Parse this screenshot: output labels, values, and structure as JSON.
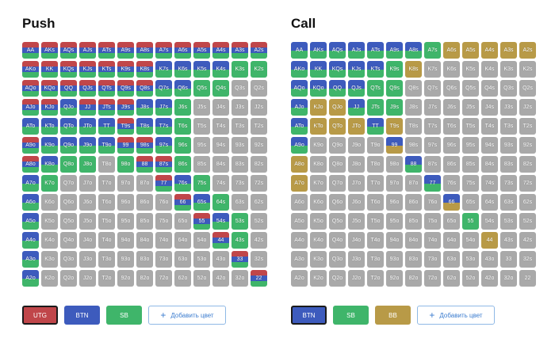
{
  "panels": [
    {
      "title": "Push",
      "legend": [
        {
          "label": "UTG",
          "color": "#c0464a",
          "active": true
        },
        {
          "label": "BTN",
          "color": "#3d5bbd",
          "active": false
        },
        {
          "label": "SB",
          "color": "#3fb56a",
          "active": false
        }
      ],
      "add_label": "Добавить цвет",
      "rows": [
        [
          "AA:rbg",
          "AKs:rbg",
          "AQs:rbg",
          "AJs:rbg",
          "ATs:rbg",
          "A9s:rbg",
          "A8s:rbg",
          "A7s:rbg",
          "A6s:rbg",
          "A5s:rbg",
          "A4s:rbg",
          "A3s:rbg",
          "A2s:rbg"
        ],
        [
          "AKo:rbg",
          "KK:rbg",
          "KQs:rbg",
          "KJs:rbg",
          "KTs:rbg",
          "K9s:rbg",
          "K8s:rbg",
          "K7s:bg",
          "K6s:bg",
          "K5s:bg",
          "K4s:bg",
          "K3s:g",
          "K2s:g"
        ],
        [
          "AQo:rbg",
          "KQo:rbg",
          "QQ:rbg",
          "QJs:rbg",
          "QTs:rbg",
          "Q9s:rbg",
          "Q8s:rbg",
          "Q7s:bg",
          "Q6s:bg",
          "Q5s:g",
          "Q4s:g",
          "Q3s:",
          "Q2s:"
        ],
        [
          "AJo:rbg",
          "KJo:rbg",
          "QJo:bg",
          "JJ:rbg",
          "JTs:rbg",
          "J9s:rbg",
          "J8s:bg",
          "J7s:bg",
          "J6s:g",
          "J5s:",
          "J4s:",
          "J3s:",
          "J2s:"
        ],
        [
          "ATo:bg",
          "KTo:bg",
          "QTo:bg",
          "JTo:bg",
          "TT:bg",
          "T9s:rbg",
          "T8s:bg",
          "T7s:bg",
          "T6s:g",
          "T5s:",
          "T4s:",
          "T3s:",
          "T2s:"
        ],
        [
          "A9o:rbg",
          "K9o:bg",
          "Q9o:bg",
          "J9o:bg",
          "T9o:bg",
          "99:rbg",
          "98s:rbg",
          "97s:bg",
          "96s:g",
          "95s:",
          "94s:",
          "93s:",
          "92s:"
        ],
        [
          "A8o:rbg",
          "K8o:bg",
          "Q8o:g",
          "J8o:g",
          "T8o:",
          "98o:g",
          "88:rbg",
          "87s:rbg",
          "86s:g",
          "85s:",
          "84s:",
          "83s:",
          "82s:"
        ],
        [
          "A7o:bg",
          "K7o:g",
          "Q7o:",
          "J7o:",
          "T7o:",
          "97o:",
          "87o:",
          "77:rbg",
          "76s:bg",
          "75s:g",
          "74s:",
          "73s:",
          "72s:"
        ],
        [
          "A6o:bg",
          "K6o:",
          "Q6o:",
          "J6o:",
          "T6o:",
          "96o:",
          "86o:",
          "76o:",
          "66:rbg",
          "65s:bg",
          "64s:g",
          "63s:",
          "62s:"
        ],
        [
          "A5o:bg",
          "K5o:",
          "Q5o:",
          "J5o:",
          "T5o:",
          "95o:",
          "85o:",
          "75o:",
          "65o:",
          "55:rbg",
          "54s:bg",
          "53s:g",
          "52s:"
        ],
        [
          "A4o:bg",
          "K4o:",
          "Q4o:",
          "J4o:",
          "T4o:",
          "94o:",
          "84o:",
          "74o:",
          "64o:",
          "54o:",
          "44:rbg",
          "43s:g",
          "42s:"
        ],
        [
          "A3o:bg",
          "K3o:",
          "Q3o:",
          "J3o:",
          "T3o:",
          "93o:",
          "83o:",
          "73o:",
          "63o:",
          "53o:",
          "43o:",
          "33:rbg",
          "32s:"
        ],
        [
          "A2o:bg",
          "K2o:",
          "Q2o:",
          "J2o:",
          "T2o:",
          "92o:",
          "82o:",
          "72o:",
          "62o:",
          "52o:",
          "42o:",
          "32o:",
          "22:rbg"
        ]
      ]
    },
    {
      "title": "Call",
      "legend": [
        {
          "label": "BTN",
          "color": "#3d5bbd",
          "active": true
        },
        {
          "label": "SB",
          "color": "#3fb56a",
          "active": false
        },
        {
          "label": "BB",
          "color": "#b89a47",
          "active": false
        }
      ],
      "add_label": "Добавить цвет",
      "rows": [
        [
          "AA:bg",
          "AKs:bg",
          "AQs:bg",
          "AJs:bg",
          "ATs:bg",
          "A9s:bg",
          "A8s:bg",
          "A7s:g",
          "A6s:y",
          "A5s:y",
          "A4s:y",
          "A3s:y",
          "A2s:y"
        ],
        [
          "AKo:bg",
          "KK:bg",
          "KQs:bg",
          "KJs:bg",
          "KTs:bg",
          "K9s:g",
          "K8s:y",
          "K7s:",
          "K6s:",
          "K5s:",
          "K4s:",
          "K3s:",
          "K2s:"
        ],
        [
          "AQo:bg",
          "KQo:bg",
          "QQ:bg",
          "QJs:bg",
          "QTs:g",
          "Q9s:g",
          "Q8s:",
          "Q7s:",
          "Q6s:",
          "Q5s:",
          "Q4s:",
          "Q3s:",
          "Q2s:"
        ],
        [
          "AJo:bg",
          "KJo:y",
          "QJo:y",
          "JJ:bg",
          "JTs:g",
          "J9s:g",
          "J8s:",
          "J7s:",
          "J6s:",
          "J5s:",
          "J4s:",
          "J3s:",
          "J2s:"
        ],
        [
          "ATo:bg",
          "KTo:y",
          "QTo:y",
          "JTo:y",
          "TT:bg",
          "T9s:y",
          "T8s:",
          "T7s:",
          "T6s:",
          "T5s:",
          "T4s:",
          "T3s:",
          "T2s:"
        ],
        [
          "A9o:bg",
          "K9o:",
          "Q9o:",
          "J9o:",
          "T9o:",
          "99:by",
          "98s:",
          "97s:",
          "96s:",
          "95s:",
          "94s:",
          "93s:",
          "92s:"
        ],
        [
          "A8o:y",
          "K8o:",
          "Q8o:",
          "J8o:",
          "T8o:",
          "98o:",
          "88:bg",
          "87s:",
          "86s:",
          "85s:",
          "84s:",
          "83s:",
          "82s:"
        ],
        [
          "A7o:y",
          "K7o:",
          "Q7o:",
          "J7o:",
          "T7o:",
          "97o:",
          "87o:",
          "77:bg",
          "76s:",
          "75s:",
          "74s:",
          "73s:",
          "72s:"
        ],
        [
          "A6o:",
          "K6o:",
          "Q6o:",
          "J6o:",
          "T6o:",
          "96o:",
          "86o:",
          "76o:",
          "66:by",
          "65s:",
          "64s:",
          "63s:",
          "62s:"
        ],
        [
          "A5o:",
          "K5o:",
          "Q5o:",
          "J5o:",
          "T5o:",
          "95o:",
          "85o:",
          "75o:",
          "65o:",
          "55:g",
          "54s:",
          "53s:",
          "52s:"
        ],
        [
          "A4o:",
          "K4o:",
          "Q4o:",
          "J4o:",
          "T4o:",
          "94o:",
          "84o:",
          "74o:",
          "64o:",
          "54o:",
          "44:y",
          "43s:",
          "42s:"
        ],
        [
          "A3o:",
          "K3o:",
          "Q3o:",
          "J3o:",
          "T3o:",
          "93o:",
          "83o:",
          "73o:",
          "63o:",
          "53o:",
          "43o:",
          "33:",
          "32s:"
        ],
        [
          "A2o:",
          "K2o:",
          "Q2o:",
          "J2o:",
          "T2o:",
          "92o:",
          "82o:",
          "72o:",
          "62o:",
          "52o:",
          "42o:",
          "32o:",
          "22:"
        ]
      ]
    }
  ],
  "colors": {
    "r": "#c0464a",
    "b": "#3d5bbd",
    "g": "#3fb56a",
    "y": "#b89a47",
    "empty": "#a9a9a9"
  }
}
